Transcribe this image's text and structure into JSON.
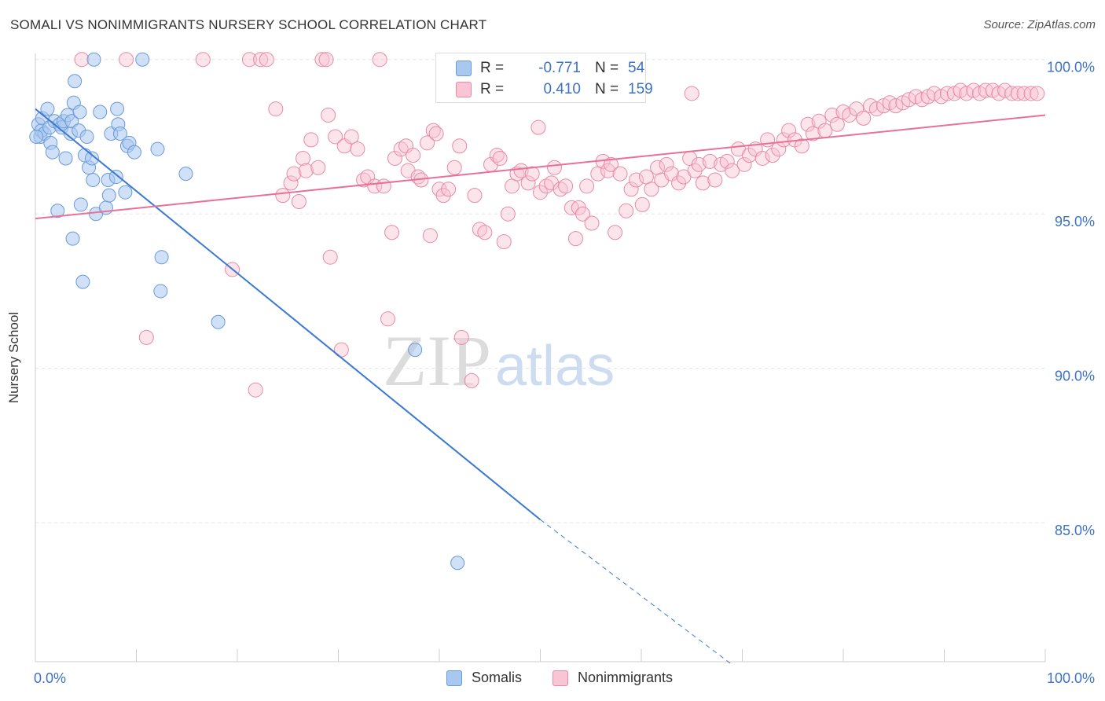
{
  "title": "SOMALI VS NONIMMIGRANTS NURSERY SCHOOL CORRELATION CHART",
  "source": "Source: ZipAtlas.com",
  "watermark": {
    "zip": "ZIP",
    "atlas": "atlas"
  },
  "legend_top": {
    "rows": [
      {
        "label": "R =",
        "r": "-0.771",
        "n_label": "N =",
        "n": "54",
        "color": "#a9c8f0",
        "border": "#6a9ad8"
      },
      {
        "label": "R =",
        "r": "0.410",
        "n_label": "N =",
        "n": "159",
        "color": "#f9c4d3",
        "border": "#e88aa6"
      }
    ]
  },
  "legend_bottom": [
    {
      "label": "Somalis",
      "color": "#a9c8f0",
      "border": "#6a9ad8"
    },
    {
      "label": "Nonimmigrants",
      "color": "#f9c4d3",
      "border": "#e88aa6"
    }
  ],
  "x_axis": {
    "left_label": "0.0%",
    "right_label": "100.0%"
  },
  "chart_data": {
    "type": "scatter",
    "title": "SOMALI VS NONIMMIGRANTS NURSERY SCHOOL CORRELATION CHART",
    "xlabel": "",
    "ylabel": "Nursery School",
    "xlim": [
      0,
      100
    ],
    "ylim": [
      80.5,
      100.4
    ],
    "y_ticks": [
      85.0,
      90.0,
      95.0,
      100.0
    ],
    "y_tick_labels": [
      "85.0%",
      "90.0%",
      "95.0%",
      "100.0%"
    ],
    "colors": {
      "somalis": "#3a78d4",
      "nonimmigrants": "#e8709a",
      "grid": "#e3e3e3",
      "axis_text": "#3d72c8"
    },
    "series": [
      {
        "name": "Somalis",
        "r": -0.771,
        "n": 54,
        "trend": {
          "x0": 0,
          "y0": 98.4,
          "x1": 50,
          "y1": 85.1,
          "dash_x1": 69,
          "dash_y1": 80.4
        },
        "points": [
          [
            0.3,
            97.9
          ],
          [
            0.5,
            97.5
          ],
          [
            0.6,
            97.7
          ],
          [
            0.7,
            98.1
          ],
          [
            0.9,
            97.6
          ],
          [
            1.2,
            98.4
          ],
          [
            1.4,
            97.8
          ],
          [
            1.5,
            97.3
          ],
          [
            1.7,
            97.0
          ],
          [
            1.9,
            98.0
          ],
          [
            2.2,
            95.1
          ],
          [
            2.4,
            97.9
          ],
          [
            2.6,
            97.8
          ],
          [
            2.8,
            98.0
          ],
          [
            3.0,
            96.8
          ],
          [
            3.2,
            98.2
          ],
          [
            3.5,
            97.6
          ],
          [
            3.6,
            98.0
          ],
          [
            3.7,
            94.2
          ],
          [
            3.8,
            98.6
          ],
          [
            3.9,
            99.3
          ],
          [
            4.3,
            97.7
          ],
          [
            4.4,
            98.3
          ],
          [
            4.5,
            95.3
          ],
          [
            4.7,
            92.8
          ],
          [
            4.9,
            96.9
          ],
          [
            5.1,
            97.5
          ],
          [
            5.3,
            96.5
          ],
          [
            5.6,
            96.8
          ],
          [
            5.7,
            96.1
          ],
          [
            5.8,
            100.0
          ],
          [
            6.0,
            95.0
          ],
          [
            6.4,
            98.3
          ],
          [
            7.0,
            95.2
          ],
          [
            7.2,
            96.1
          ],
          [
            7.3,
            95.6
          ],
          [
            7.5,
            97.6
          ],
          [
            8.0,
            96.2
          ],
          [
            8.1,
            98.4
          ],
          [
            8.2,
            97.9
          ],
          [
            8.4,
            97.6
          ],
          [
            8.9,
            95.7
          ],
          [
            9.1,
            97.2
          ],
          [
            9.3,
            97.3
          ],
          [
            9.8,
            97.0
          ],
          [
            10.6,
            100.0
          ],
          [
            12.1,
            97.1
          ],
          [
            12.4,
            92.5
          ],
          [
            12.5,
            93.6
          ],
          [
            14.9,
            96.3
          ],
          [
            18.1,
            91.5
          ],
          [
            37.6,
            90.6
          ],
          [
            41.8,
            83.7
          ],
          [
            0.1,
            97.5
          ]
        ]
      },
      {
        "name": "Nonimmigrants",
        "r": 0.41,
        "n": 159,
        "trend": {
          "x0": 0,
          "y0": 94.85,
          "x1": 100,
          "y1": 98.2
        },
        "points": [
          [
            4.6,
            100.0
          ],
          [
            9.0,
            100.0
          ],
          [
            11.0,
            91.0
          ],
          [
            16.6,
            100.0
          ],
          [
            19.5,
            93.2
          ],
          [
            21.2,
            100.0
          ],
          [
            21.8,
            89.3
          ],
          [
            22.3,
            100.0
          ],
          [
            22.9,
            100.0
          ],
          [
            23.8,
            98.4
          ],
          [
            24.5,
            95.6
          ],
          [
            25.3,
            96.0
          ],
          [
            25.6,
            96.3
          ],
          [
            26.1,
            95.4
          ],
          [
            26.5,
            96.8
          ],
          [
            26.8,
            96.4
          ],
          [
            27.3,
            97.4
          ],
          [
            28.0,
            96.5
          ],
          [
            28.4,
            100.0
          ],
          [
            28.8,
            100.0
          ],
          [
            29.0,
            98.2
          ],
          [
            29.2,
            93.6
          ],
          [
            29.7,
            97.5
          ],
          [
            30.3,
            90.6
          ],
          [
            30.6,
            97.2
          ],
          [
            31.3,
            97.5
          ],
          [
            31.9,
            97.1
          ],
          [
            32.5,
            96.1
          ],
          [
            32.9,
            96.2
          ],
          [
            33.6,
            95.9
          ],
          [
            34.1,
            100.0
          ],
          [
            34.5,
            95.9
          ],
          [
            34.9,
            91.6
          ],
          [
            35.3,
            94.4
          ],
          [
            35.6,
            96.8
          ],
          [
            36.2,
            97.1
          ],
          [
            36.7,
            97.2
          ],
          [
            36.9,
            96.4
          ],
          [
            37.4,
            96.9
          ],
          [
            37.9,
            96.2
          ],
          [
            38.2,
            96.1
          ],
          [
            38.8,
            97.3
          ],
          [
            39.4,
            97.7
          ],
          [
            39.7,
            97.6
          ],
          [
            39.1,
            94.3
          ],
          [
            40.0,
            95.8
          ],
          [
            40.4,
            95.6
          ],
          [
            40.9,
            95.8
          ],
          [
            41.5,
            96.5
          ],
          [
            42.0,
            97.2
          ],
          [
            42.2,
            91.0
          ],
          [
            43.2,
            89.6
          ],
          [
            43.5,
            95.6
          ],
          [
            44.0,
            94.5
          ],
          [
            44.5,
            94.4
          ],
          [
            45.1,
            96.6
          ],
          [
            45.7,
            96.9
          ],
          [
            46.0,
            96.8
          ],
          [
            46.4,
            94.1
          ],
          [
            46.8,
            95.0
          ],
          [
            47.2,
            95.9
          ],
          [
            47.7,
            96.3
          ],
          [
            48.1,
            96.4
          ],
          [
            48.8,
            96.0
          ],
          [
            49.2,
            96.3
          ],
          [
            49.8,
            97.8
          ],
          [
            50.0,
            95.7
          ],
          [
            50.6,
            95.9
          ],
          [
            51.1,
            96.0
          ],
          [
            51.4,
            96.5
          ],
          [
            52.0,
            95.8
          ],
          [
            52.5,
            95.9
          ],
          [
            53.1,
            95.2
          ],
          [
            53.5,
            94.2
          ],
          [
            53.8,
            95.2
          ],
          [
            54.2,
            95.0
          ],
          [
            54.6,
            95.9
          ],
          [
            55.1,
            94.7
          ],
          [
            55.7,
            96.3
          ],
          [
            56.2,
            96.7
          ],
          [
            56.7,
            96.4
          ],
          [
            57.0,
            96.6
          ],
          [
            57.4,
            94.4
          ],
          [
            57.9,
            96.3
          ],
          [
            58.5,
            95.1
          ],
          [
            59.0,
            95.8
          ],
          [
            59.5,
            96.1
          ],
          [
            60.1,
            95.3
          ],
          [
            60.5,
            96.2
          ],
          [
            61.0,
            95.8
          ],
          [
            61.6,
            96.5
          ],
          [
            62.0,
            96.1
          ],
          [
            62.5,
            96.6
          ],
          [
            63.0,
            96.3
          ],
          [
            63.7,
            96.0
          ],
          [
            64.2,
            96.2
          ],
          [
            64.8,
            96.8
          ],
          [
            65.3,
            96.4
          ],
          [
            65.7,
            96.6
          ],
          [
            66.1,
            96.0
          ],
          [
            66.8,
            96.7
          ],
          [
            67.3,
            96.1
          ],
          [
            67.9,
            96.6
          ],
          [
            68.5,
            96.7
          ],
          [
            69.0,
            96.4
          ],
          [
            69.6,
            97.1
          ],
          [
            70.2,
            96.6
          ],
          [
            70.7,
            96.9
          ],
          [
            71.3,
            97.1
          ],
          [
            72.0,
            96.8
          ],
          [
            72.5,
            97.4
          ],
          [
            73.0,
            96.9
          ],
          [
            73.6,
            97.1
          ],
          [
            74.1,
            97.4
          ],
          [
            74.6,
            97.7
          ],
          [
            75.2,
            97.4
          ],
          [
            75.9,
            97.2
          ],
          [
            76.5,
            97.9
          ],
          [
            77.0,
            97.6
          ],
          [
            77.6,
            98.0
          ],
          [
            78.2,
            97.7
          ],
          [
            78.9,
            98.2
          ],
          [
            79.4,
            97.9
          ],
          [
            80.0,
            98.3
          ],
          [
            80.6,
            98.2
          ],
          [
            81.3,
            98.4
          ],
          [
            82.0,
            98.1
          ],
          [
            82.7,
            98.5
          ],
          [
            83.3,
            98.4
          ],
          [
            84.0,
            98.5
          ],
          [
            84.6,
            98.6
          ],
          [
            85.2,
            98.5
          ],
          [
            85.9,
            98.6
          ],
          [
            86.5,
            98.7
          ],
          [
            87.2,
            98.8
          ],
          [
            87.8,
            98.7
          ],
          [
            88.4,
            98.8
          ],
          [
            89.0,
            98.9
          ],
          [
            89.7,
            98.8
          ],
          [
            90.3,
            98.9
          ],
          [
            91.0,
            98.9
          ],
          [
            91.6,
            99.0
          ],
          [
            92.2,
            98.9
          ],
          [
            92.9,
            99.0
          ],
          [
            93.5,
            98.9
          ],
          [
            94.1,
            99.0
          ],
          [
            94.8,
            99.0
          ],
          [
            95.4,
            98.9
          ],
          [
            96.0,
            99.0
          ],
          [
            96.7,
            98.9
          ],
          [
            97.3,
            98.9
          ],
          [
            97.9,
            98.9
          ],
          [
            98.6,
            98.9
          ],
          [
            99.2,
            98.9
          ],
          [
            65.0,
            98.9
          ]
        ]
      }
    ]
  }
}
